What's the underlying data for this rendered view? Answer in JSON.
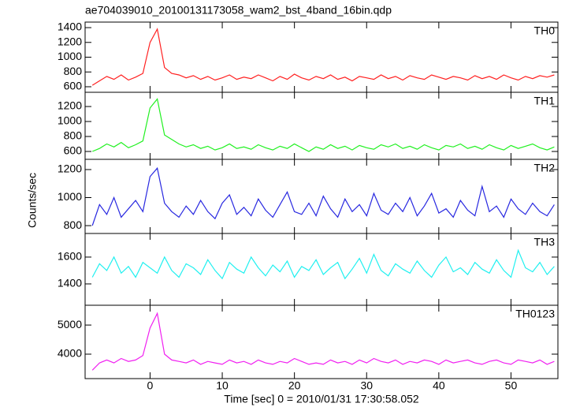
{
  "chart_data": {
    "type": "line",
    "title": "ae704039010_20100131173058_wam2_bst_4band_16bin.qdp",
    "x_label": "Time [sec] 0 = 2010/01/31 17:30:58.052",
    "y_label": "Counts/sec",
    "xlim": [
      -9,
      56.5
    ],
    "xticks": [
      0,
      10,
      20,
      30,
      40,
      50
    ],
    "x": [
      -8,
      -7,
      -6,
      -5,
      -4,
      -3,
      -2,
      -1,
      0,
      1,
      2,
      3,
      4,
      5,
      6,
      7,
      8,
      9,
      10,
      11,
      12,
      13,
      14,
      15,
      16,
      17,
      18,
      19,
      20,
      21,
      22,
      23,
      24,
      25,
      26,
      27,
      28,
      29,
      30,
      31,
      32,
      33,
      34,
      35,
      36,
      37,
      38,
      39,
      40,
      41,
      42,
      43,
      44,
      45,
      46,
      47,
      48,
      49,
      50,
      51,
      52,
      53,
      54,
      55,
      56
    ],
    "panels": [
      {
        "name": "TH0",
        "color": "#ff2020",
        "ylim": [
          525,
          1475
        ],
        "yticks": [
          600,
          800,
          1000,
          1200,
          1400
        ],
        "values": [
          620,
          680,
          740,
          700,
          760,
          690,
          730,
          780,
          1200,
          1380,
          860,
          780,
          760,
          720,
          750,
          700,
          740,
          690,
          720,
          760,
          700,
          730,
          710,
          760,
          720,
          680,
          740,
          700,
          770,
          720,
          690,
          740,
          710,
          760,
          700,
          730,
          680,
          740,
          720,
          700,
          760,
          710,
          740,
          690,
          750,
          720,
          700,
          760,
          730,
          700,
          740,
          720,
          690,
          750,
          710,
          740,
          700,
          760,
          720,
          690,
          740,
          710,
          750,
          730,
          760
        ]
      },
      {
        "name": "TH1",
        "color": "#20f020",
        "ylim": [
          495,
          1390
        ],
        "yticks": [
          600,
          800,
          1000,
          1200
        ],
        "values": [
          600,
          640,
          700,
          660,
          720,
          650,
          690,
          740,
          1180,
          1300,
          820,
          760,
          700,
          660,
          690,
          640,
          670,
          620,
          650,
          700,
          640,
          660,
          630,
          690,
          650,
          620,
          670,
          640,
          700,
          650,
          600,
          660,
          630,
          690,
          640,
          670,
          620,
          680,
          650,
          630,
          690,
          660,
          700,
          640,
          670,
          630,
          690,
          650,
          620,
          680,
          660,
          700,
          640,
          670,
          630,
          690,
          650,
          620,
          680,
          640,
          670,
          700,
          650,
          620,
          660
        ]
      },
      {
        "name": "TH2",
        "color": "#2828e0",
        "ylim": [
          744,
          1273
        ],
        "yticks": [
          800,
          1000,
          1200
        ],
        "values": [
          800,
          950,
          880,
          1000,
          860,
          920,
          980,
          900,
          1150,
          1210,
          960,
          900,
          860,
          940,
          880,
          980,
          900,
          850,
          960,
          1020,
          880,
          930,
          870,
          990,
          910,
          860,
          950,
          1040,
          900,
          880,
          960,
          870,
          1010,
          920,
          860,
          990,
          900,
          950,
          870,
          1030,
          910,
          880,
          960,
          900,
          1000,
          870,
          940,
          1030,
          890,
          920,
          860,
          980,
          910,
          870,
          1080,
          900,
          940,
          860,
          990,
          920,
          880,
          960,
          900,
          870,
          950
        ]
      },
      {
        "name": "TH3",
        "color": "#20f0f0",
        "ylim": [
          1241,
          1776
        ],
        "yticks": [
          1400,
          1600
        ],
        "values": [
          1450,
          1550,
          1500,
          1600,
          1480,
          1530,
          1450,
          1560,
          1520,
          1480,
          1600,
          1500,
          1450,
          1550,
          1520,
          1470,
          1580,
          1500,
          1440,
          1560,
          1510,
          1480,
          1600,
          1520,
          1460,
          1540,
          1490,
          1570,
          1450,
          1530,
          1500,
          1580,
          1470,
          1520,
          1560,
          1440,
          1510,
          1590,
          1480,
          1620,
          1500,
          1460,
          1550,
          1510,
          1480,
          1570,
          1500,
          1450,
          1540,
          1600,
          1490,
          1520,
          1470,
          1560,
          1510,
          1480,
          1580,
          1500,
          1450,
          1650,
          1520,
          1490,
          1560,
          1470,
          1530
        ]
      },
      {
        "name": "TH0123",
        "color": "#f020f0",
        "ylim": [
          3160,
          5680
        ],
        "yticks": [
          4000,
          5000
        ],
        "values": [
          3450,
          3700,
          3800,
          3700,
          3850,
          3750,
          3800,
          3950,
          4900,
          5400,
          4000,
          3800,
          3750,
          3700,
          3800,
          3650,
          3750,
          3700,
          3650,
          3800,
          3700,
          3750,
          3650,
          3800,
          3700,
          3650,
          3750,
          3700,
          3850,
          3750,
          3650,
          3700,
          3650,
          3800,
          3700,
          3750,
          3650,
          3800,
          3700,
          3850,
          3750,
          3700,
          3800,
          3650,
          3750,
          3700,
          3800,
          3750,
          3650,
          3800,
          3700,
          3750,
          3800,
          3700,
          3650,
          3750,
          3800,
          3700,
          3650,
          3800,
          3750,
          3700,
          3800,
          3650,
          3750
        ]
      }
    ]
  }
}
